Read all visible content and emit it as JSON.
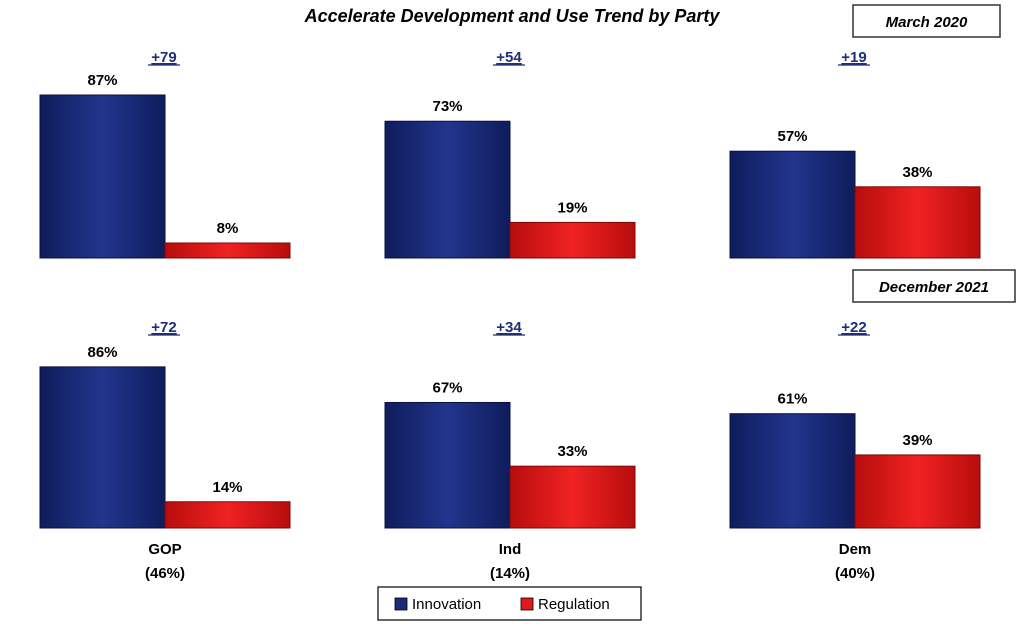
{
  "chart_data": {
    "type": "bar",
    "title": "Accelerate Development and Use Trend by Party",
    "categories": [
      {
        "name": "GOP",
        "share": "(46%)"
      },
      {
        "name": "Ind",
        "share": "(14%)"
      },
      {
        "name": "Dem",
        "share": "(40%)"
      }
    ],
    "legend": [
      "Innovation",
      "Regulation"
    ],
    "colors": {
      "innovation": "#1a2b78",
      "regulation": "#e01a1a",
      "diff": "#1f2f78"
    },
    "ylim": [
      0,
      100
    ],
    "panels": [
      {
        "period": "March 2020",
        "groups": [
          {
            "diff": "+79",
            "innovation": 87,
            "regulation": 8,
            "innovation_label": "87%",
            "regulation_label": "8%"
          },
          {
            "diff": "+54",
            "innovation": 73,
            "regulation": 19,
            "innovation_label": "73%",
            "regulation_label": "19%"
          },
          {
            "diff": "+19",
            "innovation": 57,
            "regulation": 38,
            "innovation_label": "57%",
            "regulation_label": "38%"
          }
        ]
      },
      {
        "period": "December 2021",
        "groups": [
          {
            "diff": "+72",
            "innovation": 86,
            "regulation": 14,
            "innovation_label": "86%",
            "regulation_label": "14%"
          },
          {
            "diff": "+34",
            "innovation": 67,
            "regulation": 33,
            "innovation_label": "67%",
            "regulation_label": "33%"
          },
          {
            "diff": "+22",
            "innovation": 61,
            "regulation": 39,
            "innovation_label": "61%",
            "regulation_label": "39%"
          }
        ]
      }
    ]
  }
}
